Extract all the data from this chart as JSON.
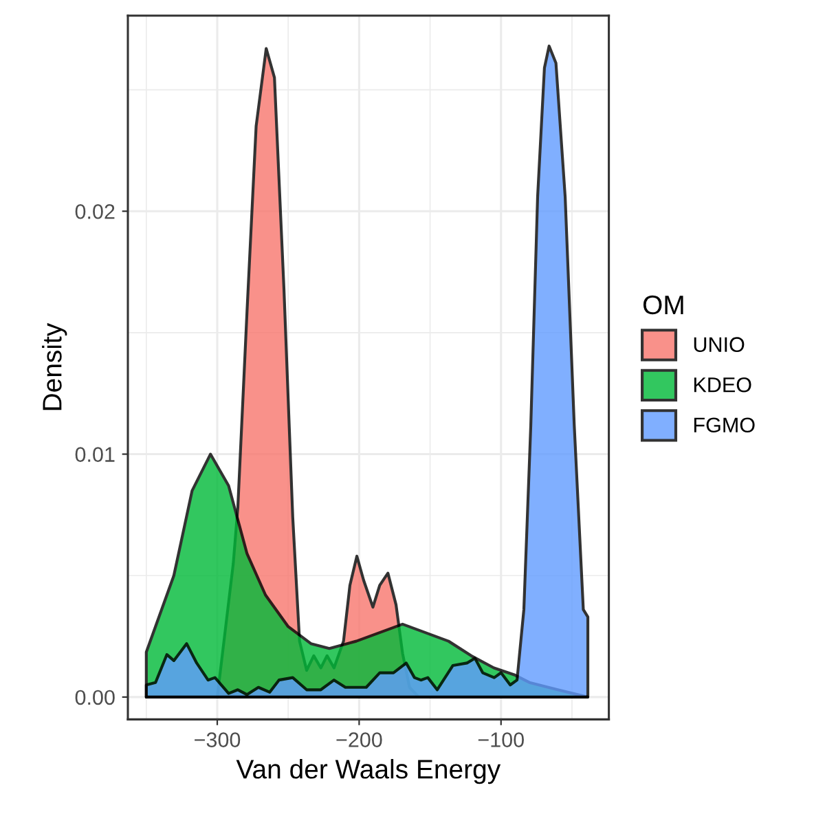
{
  "chart_data": {
    "type": "area",
    "xlabel": "Van der Waals Energy",
    "ylabel": "Density",
    "legend_title": "OM",
    "xlim": [
      -363,
      -24
    ],
    "ylim": [
      -0.00092,
      0.02805
    ],
    "xticks": [
      {
        "value": -300,
        "label": "−300"
      },
      {
        "value": -200,
        "label": "−200"
      },
      {
        "value": -100,
        "label": "−100"
      }
    ],
    "yticks": [
      {
        "value": 0,
        "label": "0.00"
      },
      {
        "value": 0.01,
        "label": "0.01"
      },
      {
        "value": 0.02,
        "label": "0.02"
      }
    ],
    "grid": true,
    "legend": "right",
    "series": [
      {
        "name": "UNIO",
        "color": "#f8766d",
        "x": [
          -350,
          -300,
          -288.7,
          -285.5,
          -279,
          -272.6,
          -265.5,
          -259.7,
          -253,
          -246.8,
          -242,
          -237,
          -232,
          -227,
          -222.6,
          -217.7,
          -211,
          -206.5,
          -201.6,
          -196.8,
          -190.3,
          -185.5,
          -179.7,
          -174,
          -169.4,
          -164.5,
          -158,
          -39
        ],
        "values": [
          0,
          0,
          0.0055,
          0.0078,
          0.0159,
          0.0235,
          0.0267,
          0.0255,
          0.0168,
          0.0074,
          0.0023,
          0.0011,
          0.0017,
          0.0012,
          0.0017,
          0.0012,
          0.0023,
          0.0046,
          0.0058,
          0.0048,
          0.0037,
          0.0046,
          0.0051,
          0.0038,
          0.0018,
          0.0004,
          0,
          0
        ]
      },
      {
        "name": "KDEO",
        "color": "#00ba38",
        "x": [
          -350,
          -330.6,
          -317.7,
          -304.8,
          -292,
          -279,
          -266,
          -250,
          -234,
          -221,
          -202,
          -169.4,
          -137,
          -121,
          -105,
          -90,
          -80,
          -60,
          -39
        ],
        "values": [
          0.00185,
          0.005,
          0.0085,
          0.01,
          0.0087,
          0.0059,
          0.0042,
          0.0029,
          0.0022,
          0.002,
          0.0023,
          0.003,
          0.0023,
          0.0017,
          0.0012,
          0.0009,
          0.0006,
          0.0003,
          0
        ]
      },
      {
        "name": "FGMO",
        "color": "#619cff",
        "x": [
          -350,
          -343.5,
          -335.5,
          -330.6,
          -321.6,
          -314.5,
          -306.5,
          -301.6,
          -292,
          -285.5,
          -279,
          -271,
          -263,
          -256.5,
          -246.8,
          -237,
          -227,
          -217.7,
          -209.7,
          -201.6,
          -195,
          -185.5,
          -175.8,
          -166.8,
          -161,
          -156.5,
          -151.6,
          -145,
          -133.9,
          -124,
          -118.4,
          -112.9,
          -104.8,
          -100,
          -93.5,
          -88.7,
          -83.9,
          -79,
          -74.2,
          -69.4,
          -66.1,
          -61.3,
          -54.8,
          -48.4,
          -42,
          -38.8
        ],
        "values": [
          0.0005,
          0.0006,
          0.00175,
          0.0015,
          0.0022,
          0.0014,
          0.0007,
          0.0008,
          0.00015,
          0.0003,
          0.0001,
          0.0004,
          0.0002,
          0.0007,
          0.0008,
          0.0003,
          0.0003,
          0.0007,
          0.0004,
          0.0004,
          0.0004,
          0.001,
          0.001,
          0.0014,
          0.0008,
          0.0007,
          0.0008,
          0.0003,
          0.0013,
          0.0014,
          0.0016,
          0.001,
          0.0008,
          0.001,
          0.0005,
          0.0007,
          0.0036,
          0.0112,
          0.0206,
          0.0259,
          0.0268,
          0.0261,
          0.0206,
          0.0112,
          0.0036,
          0.0033
        ]
      }
    ]
  }
}
